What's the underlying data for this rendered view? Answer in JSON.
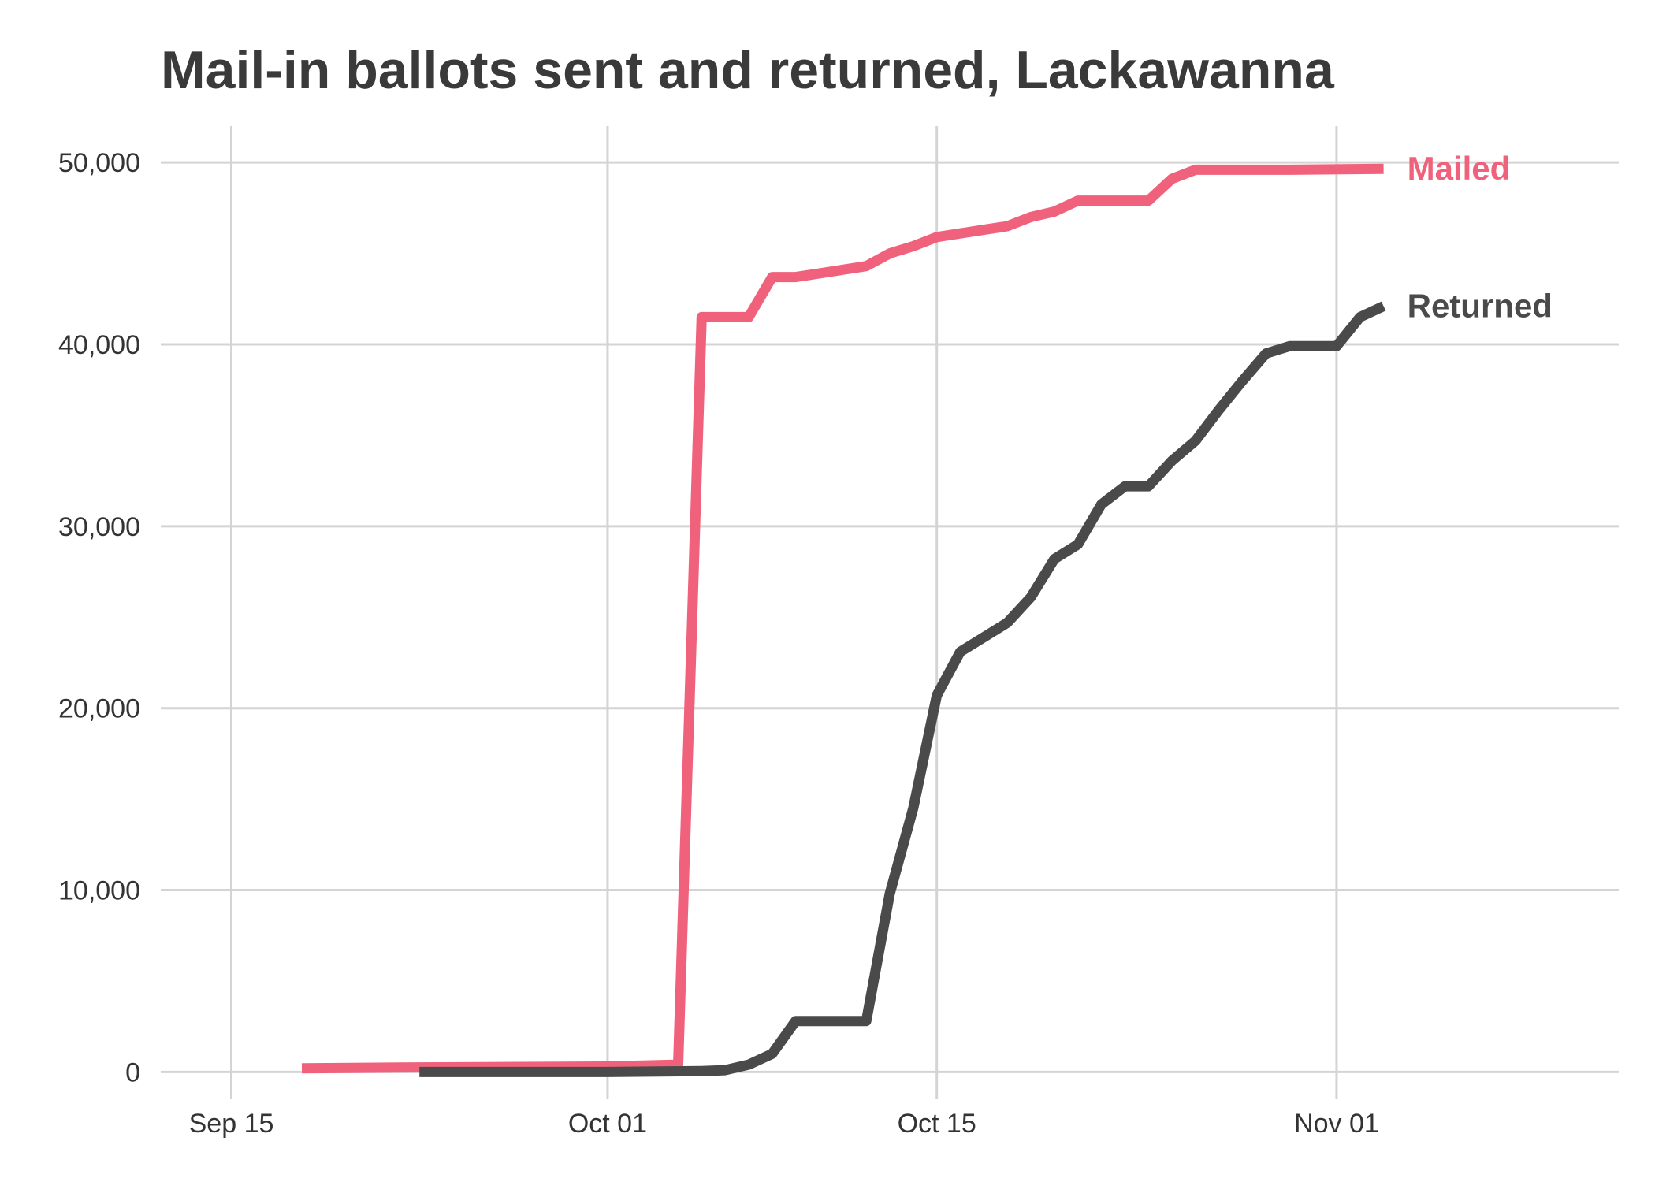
{
  "chart_data": {
    "type": "line",
    "title": "Mail-in ballots sent and returned, Lackawanna",
    "xlabel": "",
    "ylabel": "",
    "x_tick_labels": [
      "Sep 15",
      "Oct 01",
      "Oct 15",
      "Nov 01"
    ],
    "x_tick_dates": [
      "2020-09-15",
      "2020-10-01",
      "2020-10-15",
      "2020-11-01"
    ],
    "xlim": [
      "2020-09-12",
      "2020-11-13"
    ],
    "y_tick_labels": [
      "0",
      "10,000",
      "20,000",
      "30,000",
      "40,000",
      "50,000"
    ],
    "y_ticks": [
      0,
      10000,
      20000,
      30000,
      40000,
      50000
    ],
    "ylim": [
      -1500,
      52000
    ],
    "grid": true,
    "legend": "none",
    "series": [
      {
        "name": "Mailed",
        "color": "#f0627c",
        "points": [
          [
            "2020-09-18",
            200
          ],
          [
            "2020-09-23",
            250
          ],
          [
            "2020-10-01",
            300
          ],
          [
            "2020-10-04",
            400
          ],
          [
            "2020-10-05",
            41500
          ],
          [
            "2020-10-07",
            41500
          ],
          [
            "2020-10-08",
            43700
          ],
          [
            "2020-10-09",
            43700
          ],
          [
            "2020-10-10",
            43900
          ],
          [
            "2020-10-12",
            44300
          ],
          [
            "2020-10-13",
            45000
          ],
          [
            "2020-10-14",
            45400
          ],
          [
            "2020-10-15",
            45900
          ],
          [
            "2020-10-16",
            46100
          ],
          [
            "2020-10-17",
            46300
          ],
          [
            "2020-10-18",
            46500
          ],
          [
            "2020-10-19",
            47000
          ],
          [
            "2020-10-20",
            47300
          ],
          [
            "2020-10-21",
            47900
          ],
          [
            "2020-10-24",
            47900
          ],
          [
            "2020-10-25",
            49100
          ],
          [
            "2020-10-26",
            49600
          ],
          [
            "2020-10-30",
            49600
          ],
          [
            "2020-11-03",
            49650
          ]
        ]
      },
      {
        "name": "Returned",
        "color": "#4a4a4a",
        "points": [
          [
            "2020-09-23",
            0
          ],
          [
            "2020-10-01",
            0
          ],
          [
            "2020-10-05",
            50
          ],
          [
            "2020-10-06",
            100
          ],
          [
            "2020-10-07",
            400
          ],
          [
            "2020-10-08",
            1000
          ],
          [
            "2020-10-09",
            2800
          ],
          [
            "2020-10-12",
            2800
          ],
          [
            "2020-10-13",
            9800
          ],
          [
            "2020-10-14",
            14500
          ],
          [
            "2020-10-15",
            20700
          ],
          [
            "2020-10-16",
            23100
          ],
          [
            "2020-10-17",
            23900
          ],
          [
            "2020-10-18",
            24700
          ],
          [
            "2020-10-19",
            26100
          ],
          [
            "2020-10-20",
            28200
          ],
          [
            "2020-10-21",
            29000
          ],
          [
            "2020-10-22",
            31200
          ],
          [
            "2020-10-23",
            32200
          ],
          [
            "2020-10-24",
            32200
          ],
          [
            "2020-10-25",
            33600
          ],
          [
            "2020-10-26",
            34700
          ],
          [
            "2020-10-27",
            36400
          ],
          [
            "2020-10-28",
            38000
          ],
          [
            "2020-10-29",
            39500
          ],
          [
            "2020-10-30",
            39900
          ],
          [
            "2020-11-01",
            39900
          ],
          [
            "2020-11-02",
            41500
          ],
          [
            "2020-11-03",
            42100
          ]
        ]
      }
    ]
  }
}
